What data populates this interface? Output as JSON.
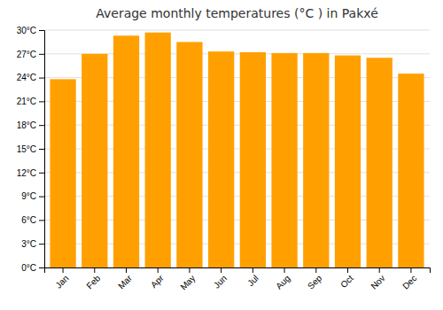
{
  "chart_data": {
    "type": "bar",
    "title": "Average monthly temperatures (°C ) in Pakxé",
    "categories": [
      "Jan",
      "Feb",
      "Mar",
      "Apr",
      "May",
      "Jun",
      "Jul",
      "Aug",
      "Sep",
      "Oct",
      "Nov",
      "Dec"
    ],
    "values": [
      23.8,
      27.0,
      29.3,
      29.7,
      28.5,
      27.3,
      27.2,
      27.1,
      27.1,
      26.8,
      26.5,
      24.5
    ],
    "color": "#FFA000",
    "ylim": [
      0,
      30
    ],
    "yticks": [
      {
        "value": 0,
        "label": "0°C"
      },
      {
        "value": 3,
        "label": "3°C"
      },
      {
        "value": 6,
        "label": "6°C"
      },
      {
        "value": 9,
        "label": "9°C"
      },
      {
        "value": 12,
        "label": "12°C"
      },
      {
        "value": 15,
        "label": "15°C"
      },
      {
        "value": 18,
        "label": "18°C"
      },
      {
        "value": 21,
        "label": "21°C"
      },
      {
        "value": 24,
        "label": "24°C"
      },
      {
        "value": 27,
        "label": "27°C"
      },
      {
        "value": 30,
        "label": "30°C"
      }
    ],
    "grid": true
  }
}
